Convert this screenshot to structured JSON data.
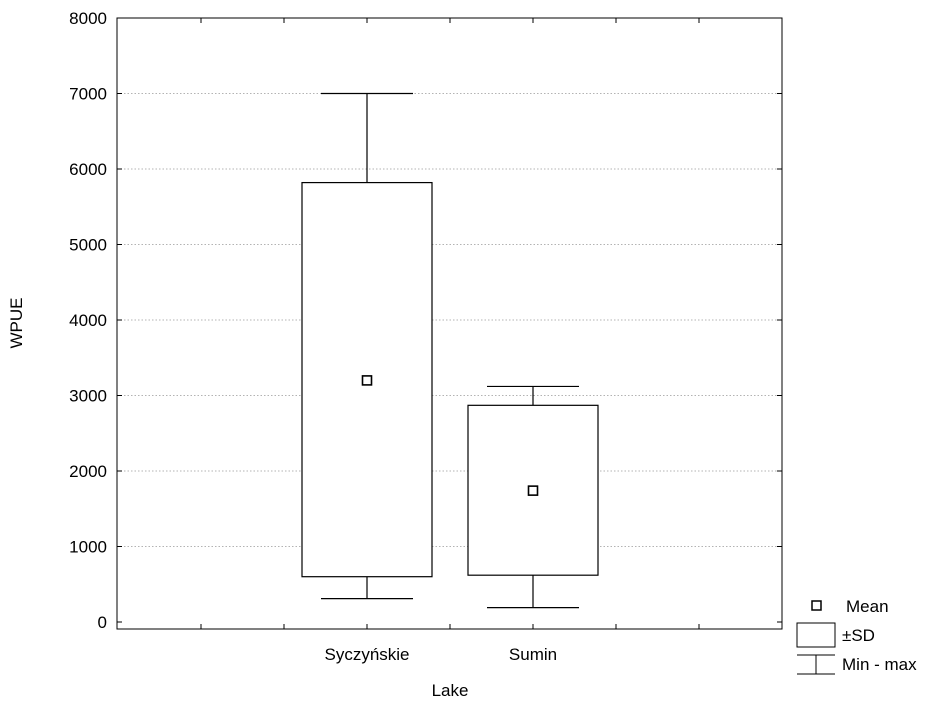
{
  "chart_data": {
    "type": "box",
    "title": "",
    "xlabel": "Lake",
    "ylabel": "WPUE",
    "ylim": [
      0,
      8000
    ],
    "yticks": [
      0,
      1000,
      2000,
      3000,
      4000,
      5000,
      6000,
      7000,
      8000
    ],
    "grid": "horizontal dotted",
    "legend_position": "bottom-right",
    "legend": {
      "mean": "Mean",
      "sd": "±SD",
      "minmax": "Min - max"
    },
    "categories": [
      "Syczyńskie",
      "Sumin"
    ],
    "boxes": [
      {
        "category": "Syczyńskie",
        "mean": 3200,
        "sd_low": 600,
        "sd_high": 5820,
        "min": 310,
        "max": 7000
      },
      {
        "category": "Sumin",
        "mean": 1740,
        "sd_low": 620,
        "sd_high": 2870,
        "min": 190,
        "max": 3120
      }
    ]
  }
}
